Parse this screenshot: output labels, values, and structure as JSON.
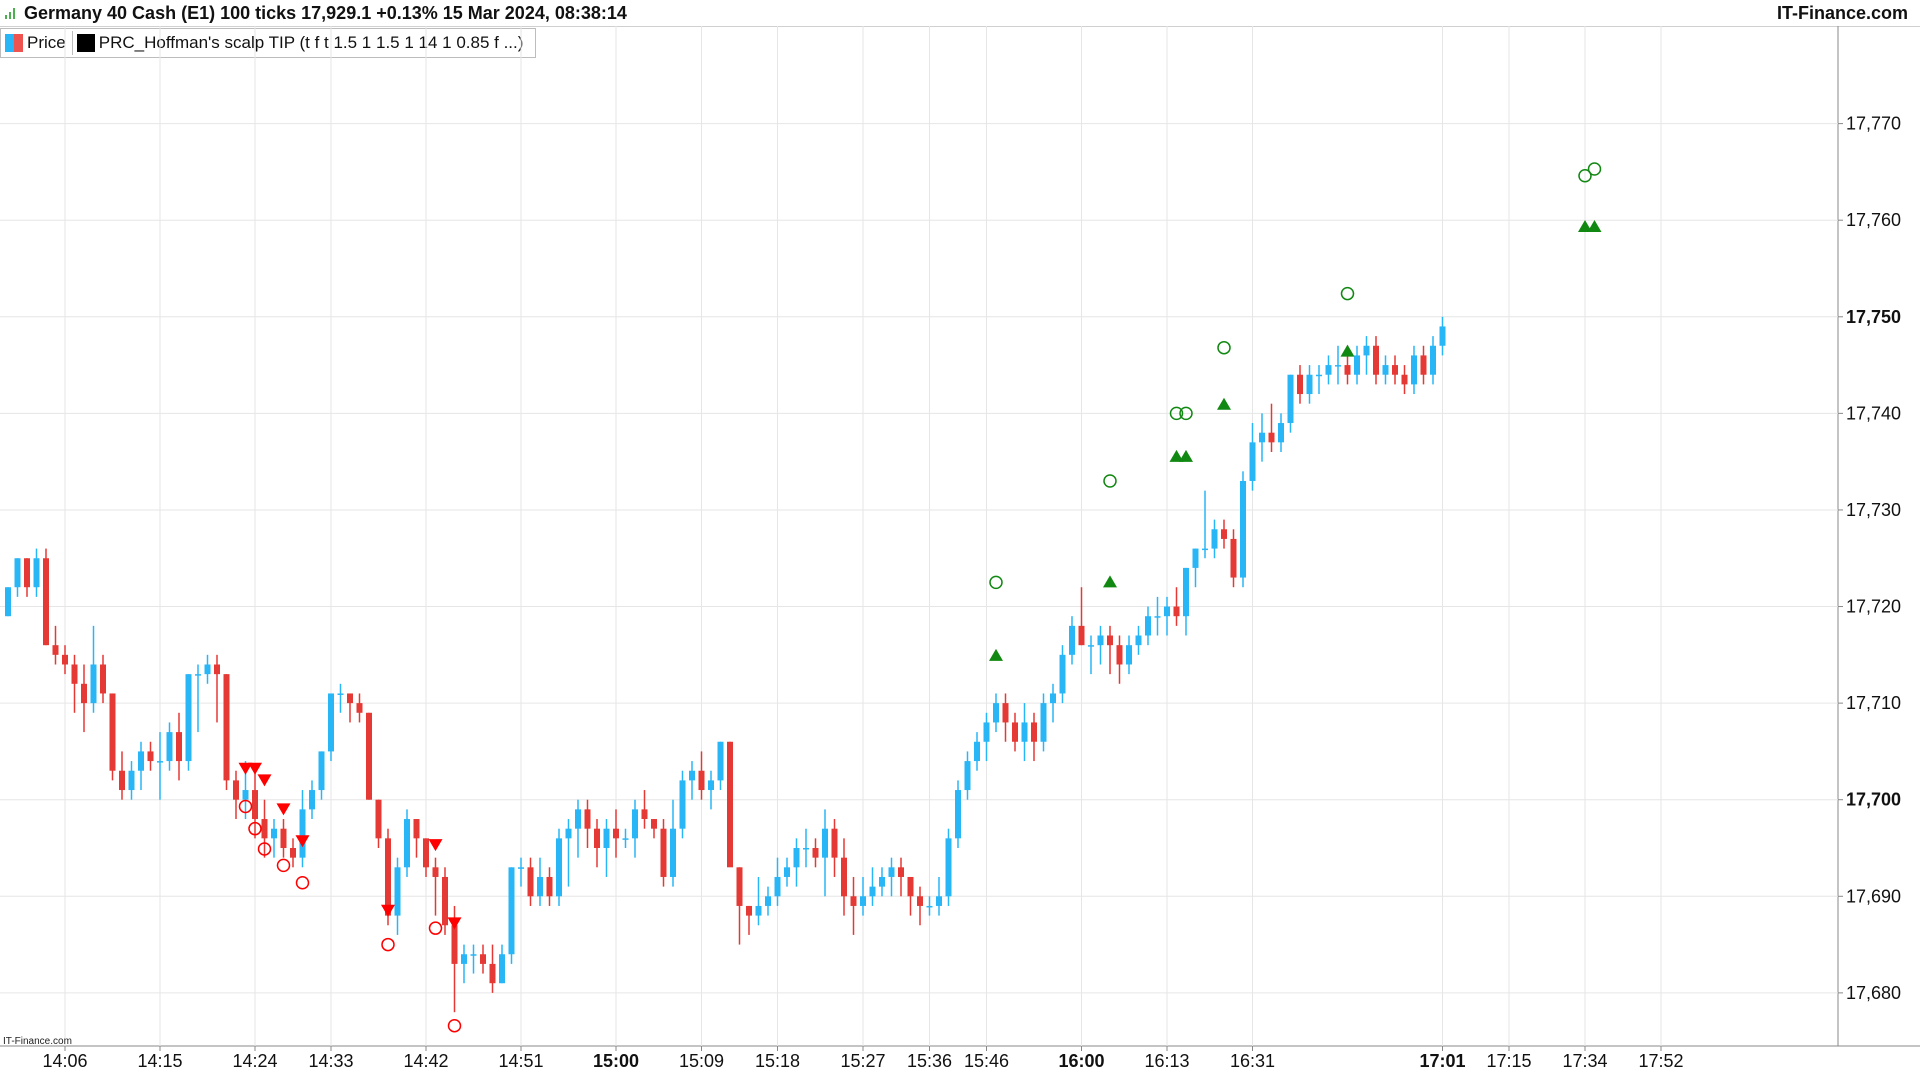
{
  "header": {
    "title": "Germany 40 Cash (E1) 100 ticks 17,929.1 +0.13% 15 Mar 2024, 08:38:14",
    "brand": "IT-Finance.com"
  },
  "legend": {
    "price_label": "Price",
    "indicator_label": "PRC_Hoffman's scalp TIP (t f t 1.5 1 1.5 1 14 1 0.85 f ...)"
  },
  "watermark": "IT-Finance.com",
  "colors": {
    "up": "#29b6f6",
    "down": "#e53935",
    "grid": "#e6e6e6",
    "buy_signal": "#118811",
    "sell_signal": "#ff0000"
  },
  "chart_data": {
    "type": "candlestick",
    "ylim": [
      17674.5,
      17777
    ],
    "y_ticks": [
      {
        "value": 17680,
        "label": "17,680",
        "bold": false
      },
      {
        "value": 17690,
        "label": "17,690",
        "bold": false
      },
      {
        "value": 17700,
        "label": "17,700",
        "bold": true
      },
      {
        "value": 17710,
        "label": "17,710",
        "bold": false
      },
      {
        "value": 17720,
        "label": "17,720",
        "bold": false
      },
      {
        "value": 17730,
        "label": "17,730",
        "bold": false
      },
      {
        "value": 17740,
        "label": "17,740",
        "bold": false
      },
      {
        "value": 17750,
        "label": "17,750",
        "bold": true
      },
      {
        "value": 17760,
        "label": "17,760",
        "bold": false
      },
      {
        "value": 17770,
        "label": "17,770",
        "bold": false
      }
    ],
    "x_ticks": [
      {
        "index": 6,
        "label": "14:06",
        "bold": false
      },
      {
        "index": 16,
        "label": "14:15",
        "bold": false
      },
      {
        "index": 26,
        "label": "14:24",
        "bold": false
      },
      {
        "index": 34,
        "label": "14:33",
        "bold": false
      },
      {
        "index": 44,
        "label": "14:42",
        "bold": false
      },
      {
        "index": 54,
        "label": "14:51",
        "bold": false
      },
      {
        "index": 64,
        "label": "15:00",
        "bold": true
      },
      {
        "index": 73,
        "label": "15:09",
        "bold": false
      },
      {
        "index": 81,
        "label": "15:18",
        "bold": false
      },
      {
        "index": 90,
        "label": "15:27",
        "bold": false
      },
      {
        "index": 97,
        "label": "15:36",
        "bold": false
      },
      {
        "index": 103,
        "label": "15:46",
        "bold": false
      },
      {
        "index": 113,
        "label": "16:00",
        "bold": true
      },
      {
        "index": 122,
        "label": "16:13",
        "bold": false
      },
      {
        "index": 131,
        "label": "16:31",
        "bold": false
      },
      {
        "index": 151,
        "label": "17:01",
        "bold": true
      },
      {
        "index": 158,
        "label": "17:15",
        "bold": false
      },
      {
        "index": 166,
        "label": "17:34",
        "bold": false
      },
      {
        "index": 174,
        "label": "17:52",
        "bold": false
      }
    ],
    "candles": [
      [
        17719,
        17722,
        17719,
        17722
      ],
      [
        17722,
        17725,
        17721,
        17725
      ],
      [
        17725,
        17725,
        17721,
        17722
      ],
      [
        17722,
        17726,
        17721,
        17725
      ],
      [
        17725,
        17726,
        17716,
        17716
      ],
      [
        17716,
        17718,
        17714,
        17715
      ],
      [
        17715,
        17716,
        17713,
        17714
      ],
      [
        17714,
        17715,
        17709,
        17712
      ],
      [
        17712,
        17714,
        17707,
        17710
      ],
      [
        17710,
        17718,
        17709,
        17714
      ],
      [
        17714,
        17715,
        17710,
        17711
      ],
      [
        17711,
        17711,
        17702,
        17703
      ],
      [
        17703,
        17705,
        17700,
        17701
      ],
      [
        17701,
        17704,
        17700,
        17703
      ],
      [
        17703,
        17706,
        17701,
        17705
      ],
      [
        17705,
        17706,
        17703,
        17704
      ],
      [
        17704,
        17707,
        17700,
        17704
      ],
      [
        17704,
        17708,
        17703,
        17707
      ],
      [
        17707,
        17709,
        17702,
        17704
      ],
      [
        17704,
        17713,
        17703,
        17713
      ],
      [
        17713,
        17714,
        17707,
        17713
      ],
      [
        17713,
        17715,
        17712,
        17714
      ],
      [
        17714,
        17715,
        17708,
        17713
      ],
      [
        17713,
        17713,
        17701,
        17702
      ],
      [
        17702,
        17703,
        17698,
        17700
      ],
      [
        17700,
        17704,
        17698,
        17701
      ],
      [
        17701,
        17703,
        17696,
        17698
      ],
      [
        17698,
        17700,
        17694,
        17696
      ],
      [
        17696,
        17698,
        17694,
        17697
      ],
      [
        17697,
        17698,
        17694,
        17695
      ],
      [
        17695,
        17696,
        17693,
        17694
      ],
      [
        17694,
        17701,
        17693,
        17699
      ],
      [
        17699,
        17702,
        17698,
        17701
      ],
      [
        17701,
        17705,
        17700,
        17705
      ],
      [
        17705,
        17711,
        17704,
        17711
      ],
      [
        17711,
        17712,
        17709,
        17711
      ],
      [
        17711,
        17711,
        17708,
        17710
      ],
      [
        17710,
        17711,
        17708,
        17709
      ],
      [
        17709,
        17709,
        17700,
        17700
      ],
      [
        17700,
        17700,
        17695,
        17696
      ],
      [
        17696,
        17697,
        17687,
        17688
      ],
      [
        17688,
        17694,
        17686,
        17693
      ],
      [
        17693,
        17699,
        17692,
        17698
      ],
      [
        17698,
        17698,
        17694,
        17696
      ],
      [
        17696,
        17696,
        17692,
        17693
      ],
      [
        17693,
        17694,
        17688,
        17692
      ],
      [
        17692,
        17693,
        17686,
        17687
      ],
      [
        17687,
        17689,
        17678,
        17683
      ],
      [
        17683,
        17685,
        17681,
        17684
      ],
      [
        17684,
        17685,
        17682,
        17684
      ],
      [
        17684,
        17685,
        17682,
        17683
      ],
      [
        17683,
        17685,
        17680,
        17681
      ],
      [
        17681,
        17685,
        17681,
        17684
      ],
      [
        17684,
        17693,
        17683,
        17693
      ],
      [
        17693,
        17694,
        17691,
        17693
      ],
      [
        17693,
        17694,
        17689,
        17690
      ],
      [
        17690,
        17694,
        17689,
        17692
      ],
      [
        17692,
        17693,
        17689,
        17690
      ],
      [
        17690,
        17697,
        17689,
        17696
      ],
      [
        17696,
        17698,
        17691,
        17697
      ],
      [
        17697,
        17700,
        17694,
        17699
      ],
      [
        17699,
        17700,
        17695,
        17697
      ],
      [
        17697,
        17698,
        17693,
        17695
      ],
      [
        17695,
        17698,
        17692,
        17697
      ],
      [
        17697,
        17699,
        17694,
        17696
      ],
      [
        17696,
        17697,
        17695,
        17696
      ],
      [
        17696,
        17700,
        17694,
        17699
      ],
      [
        17699,
        17701,
        17697,
        17698
      ],
      [
        17698,
        17698,
        17696,
        17697
      ],
      [
        17697,
        17698,
        17691,
        17692
      ],
      [
        17692,
        17700,
        17691,
        17697
      ],
      [
        17697,
        17703,
        17696,
        17702
      ],
      [
        17702,
        17704,
        17700,
        17703
      ],
      [
        17703,
        17705,
        17700,
        17701
      ],
      [
        17701,
        17703,
        17699,
        17702
      ],
      [
        17702,
        17706,
        17701,
        17706
      ],
      [
        17706,
        17706,
        17694,
        17693
      ],
      [
        17693,
        17693,
        17685,
        17689
      ],
      [
        17689,
        17689,
        17686,
        17688
      ],
      [
        17688,
        17692,
        17687,
        17689
      ],
      [
        17689,
        17691,
        17688,
        17690
      ],
      [
        17690,
        17694,
        17689,
        17692
      ],
      [
        17692,
        17694,
        17691,
        17693
      ],
      [
        17693,
        17696,
        17691,
        17695
      ],
      [
        17695,
        17697,
        17693,
        17695
      ],
      [
        17695,
        17696,
        17693,
        17694
      ],
      [
        17694,
        17699,
        17690,
        17697
      ],
      [
        17697,
        17698,
        17692,
        17694
      ],
      [
        17694,
        17696,
        17688,
        17690
      ],
      [
        17690,
        17692,
        17686,
        17689
      ],
      [
        17689,
        17692,
        17688,
        17690
      ],
      [
        17690,
        17693,
        17689,
        17691
      ],
      [
        17691,
        17693,
        17690,
        17692
      ],
      [
        17692,
        17694,
        17690,
        17693
      ],
      [
        17693,
        17694,
        17690,
        17692
      ],
      [
        17692,
        17692,
        17688,
        17690
      ],
      [
        17690,
        17691,
        17687,
        17689
      ],
      [
        17689,
        17690,
        17688,
        17689
      ],
      [
        17689,
        17692,
        17688,
        17690
      ],
      [
        17690,
        17697,
        17689,
        17696
      ],
      [
        17696,
        17702,
        17695,
        17701
      ],
      [
        17701,
        17705,
        17700,
        17704
      ],
      [
        17704,
        17707,
        17703,
        17706
      ],
      [
        17706,
        17709,
        17704,
        17708
      ],
      [
        17708,
        17711,
        17707,
        17710
      ],
      [
        17710,
        17711,
        17706,
        17708
      ],
      [
        17708,
        17709,
        17705,
        17706
      ],
      [
        17706,
        17710,
        17704,
        17708
      ],
      [
        17708,
        17709,
        17704,
        17706
      ],
      [
        17706,
        17711,
        17705,
        17710
      ],
      [
        17710,
        17712,
        17708,
        17711
      ],
      [
        17711,
        17716,
        17710,
        17715
      ],
      [
        17715,
        17719,
        17714,
        17718
      ],
      [
        17718,
        17722,
        17716,
        17716
      ],
      [
        17716,
        17717,
        17713,
        17716
      ],
      [
        17716,
        17718,
        17714,
        17717
      ],
      [
        17717,
        17718,
        17713,
        17716
      ],
      [
        17716,
        17717,
        17712,
        17714
      ],
      [
        17714,
        17717,
        17713,
        17716
      ],
      [
        17716,
        17718,
        17715,
        17717
      ],
      [
        17717,
        17720,
        17716,
        17719
      ],
      [
        17719,
        17721,
        17717,
        17719
      ],
      [
        17719,
        17721,
        17717,
        17720
      ],
      [
        17720,
        17722,
        17718,
        17719
      ],
      [
        17719,
        17724,
        17717,
        17724
      ],
      [
        17724,
        17726,
        17722,
        17726
      ],
      [
        17726,
        17732,
        17725,
        17726
      ],
      [
        17726,
        17729,
        17725,
        17728
      ],
      [
        17728,
        17729,
        17726,
        17727
      ],
      [
        17727,
        17728,
        17722,
        17723
      ],
      [
        17723,
        17734,
        17722,
        17733
      ],
      [
        17733,
        17739,
        17732,
        17737
      ],
      [
        17737,
        17740,
        17735,
        17738
      ],
      [
        17738,
        17741,
        17736,
        17737
      ],
      [
        17737,
        17740,
        17736,
        17739
      ],
      [
        17739,
        17744,
        17738,
        17744
      ],
      [
        17744,
        17745,
        17741,
        17742
      ],
      [
        17742,
        17745,
        17741,
        17744
      ],
      [
        17744,
        17745,
        17742,
        17744
      ],
      [
        17744,
        17746,
        17743,
        17745
      ],
      [
        17745,
        17747,
        17743,
        17745
      ],
      [
        17745,
        17747,
        17743,
        17744
      ],
      [
        17744,
        17747,
        17743,
        17746
      ],
      [
        17746,
        17748,
        17744,
        17747
      ],
      [
        17747,
        17748,
        17743,
        17744
      ],
      [
        17744,
        17746,
        17743,
        17745
      ],
      [
        17745,
        17746,
        17743,
        17744
      ],
      [
        17744,
        17745,
        17742,
        17743
      ],
      [
        17743,
        17747,
        17742,
        17746
      ],
      [
        17746,
        17747,
        17743,
        17744
      ],
      [
        17744,
        17748,
        17743,
        17747
      ],
      [
        17747,
        17750,
        17746,
        17749
      ]
    ],
    "sell_signals": [
      {
        "i": 25,
        "tri": 17703.2,
        "circ": 17699.3
      },
      {
        "i": 26,
        "tri": 17703.2,
        "circ": 17697.0
      },
      {
        "i": 27,
        "tri": 17702.0,
        "circ": 17694.9
      },
      {
        "i": 29,
        "tri": 17699.0,
        "circ": 17693.2
      },
      {
        "i": 31,
        "tri": 17695.7,
        "circ": 17691.4
      },
      {
        "i": 40,
        "tri": 17688.5,
        "circ": 17685.0
      },
      {
        "i": 45,
        "tri": 17695.3,
        "circ": 17686.7
      },
      {
        "i": 47,
        "tri": 17687.2,
        "circ": 17676.6
      }
    ],
    "buy_signals": [
      {
        "i": 104,
        "tri": 17715.0,
        "circ": 17722.5
      },
      {
        "i": 116,
        "tri": 17722.6,
        "circ": 17733.0
      },
      {
        "i": 123,
        "tri": 17735.6,
        "circ": 17740.0
      },
      {
        "i": 124,
        "tri": 17735.6,
        "circ": 17740.0
      },
      {
        "i": 128,
        "tri": 17741.0,
        "circ": 17746.8
      },
      {
        "i": 141,
        "tri": 17746.5,
        "circ": 17752.4
      },
      {
        "i": 166,
        "tri": 17759.4,
        "circ": 17764.6
      },
      {
        "i": 167,
        "tri": 17759.4,
        "circ": 17765.3
      }
    ]
  }
}
